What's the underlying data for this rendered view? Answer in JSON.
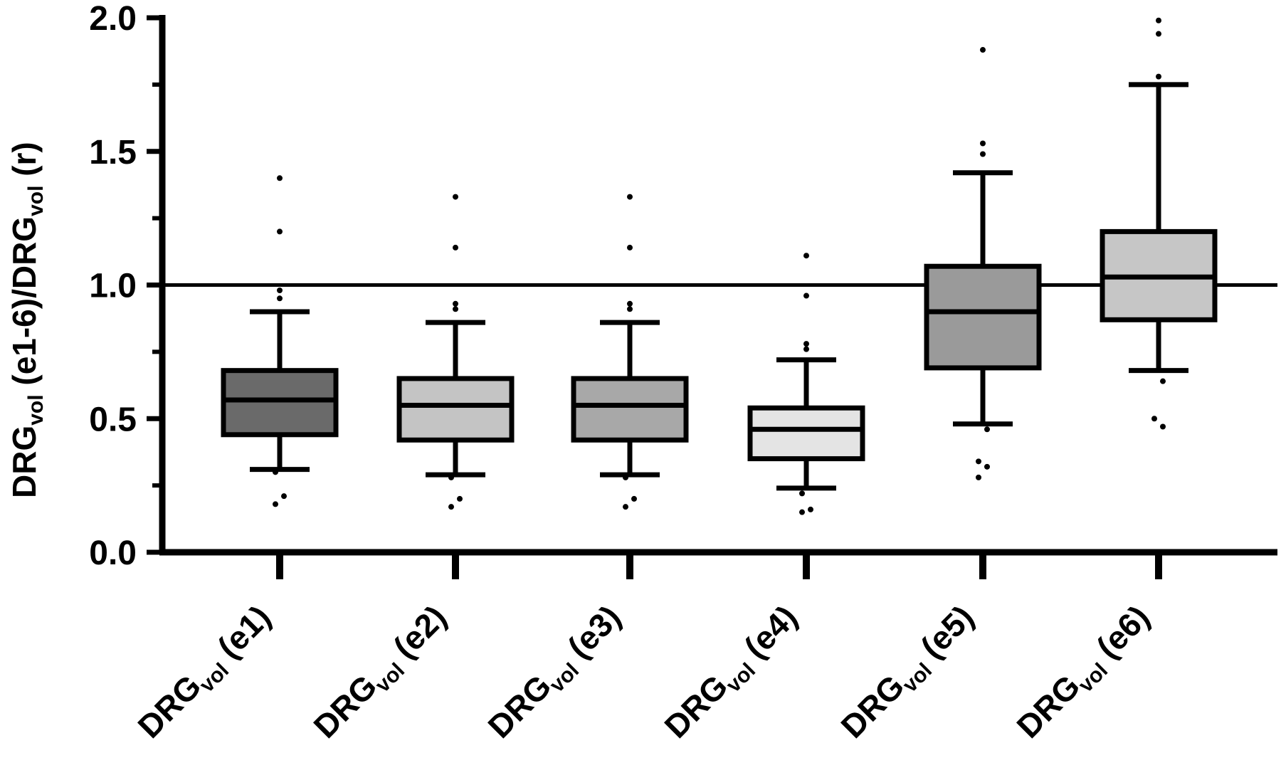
{
  "chart_data": {
    "type": "box",
    "ylabel": {
      "main": "DRG",
      "sub1": "vol",
      "mid": " (e1-6)/DRG",
      "sub2": "vol",
      "tail": " (r)"
    },
    "ylim": [
      0,
      2.0
    ],
    "yticks": [
      "0.0",
      "0.5",
      "1.0",
      "1.5",
      "2.0"
    ],
    "ytick_values": [
      0,
      0.5,
      1.0,
      1.5,
      2.0
    ],
    "reference_line": 1.0,
    "grid": false,
    "categories": [
      {
        "main": "DRG",
        "sub": "vol",
        "tail": " (e1)"
      },
      {
        "main": "DRG",
        "sub": "vol",
        "tail": " (e2)"
      },
      {
        "main": "DRG",
        "sub": "vol",
        "tail": " (e3)"
      },
      {
        "main": "DRG",
        "sub": "vol",
        "tail": " (e4)"
      },
      {
        "main": "DRG",
        "sub": "vol",
        "tail": " (e5)"
      },
      {
        "main": "DRG",
        "sub": "vol",
        "tail": " (e6)"
      }
    ],
    "boxes": [
      {
        "whisker_low": 0.31,
        "q1": 0.44,
        "median": 0.57,
        "q3": 0.68,
        "whisker_high": 0.9,
        "outliers": [
          1.4,
          1.2,
          0.98,
          0.95,
          0.3,
          0.21,
          0.18
        ],
        "fill": "#6a6a6a"
      },
      {
        "whisker_low": 0.29,
        "q1": 0.42,
        "median": 0.55,
        "q3": 0.65,
        "whisker_high": 0.86,
        "outliers": [
          1.33,
          1.14,
          0.93,
          0.91,
          0.28,
          0.2,
          0.17
        ],
        "fill": "#c4c4c4"
      },
      {
        "whisker_low": 0.29,
        "q1": 0.42,
        "median": 0.55,
        "q3": 0.65,
        "whisker_high": 0.86,
        "outliers": [
          1.33,
          1.14,
          0.93,
          0.91,
          0.28,
          0.2,
          0.17
        ],
        "fill": "#a8a8a8"
      },
      {
        "whisker_low": 0.24,
        "q1": 0.35,
        "median": 0.46,
        "q3": 0.54,
        "whisker_high": 0.72,
        "outliers": [
          1.11,
          0.96,
          0.78,
          0.76,
          0.22,
          0.16,
          0.15
        ],
        "fill": "#e4e4e4"
      },
      {
        "whisker_low": 0.48,
        "q1": 0.69,
        "median": 0.9,
        "q3": 1.07,
        "whisker_high": 1.42,
        "outliers": [
          1.88,
          1.53,
          1.49,
          0.46,
          0.34,
          0.32,
          0.28
        ],
        "fill": "#9a9a9a"
      },
      {
        "whisker_low": 0.68,
        "q1": 0.87,
        "median": 1.03,
        "q3": 1.2,
        "whisker_high": 1.75,
        "outliers": [
          1.99,
          1.94,
          1.78,
          0.64,
          0.5,
          0.47
        ],
        "fill": "#c6c6c6"
      }
    ]
  }
}
